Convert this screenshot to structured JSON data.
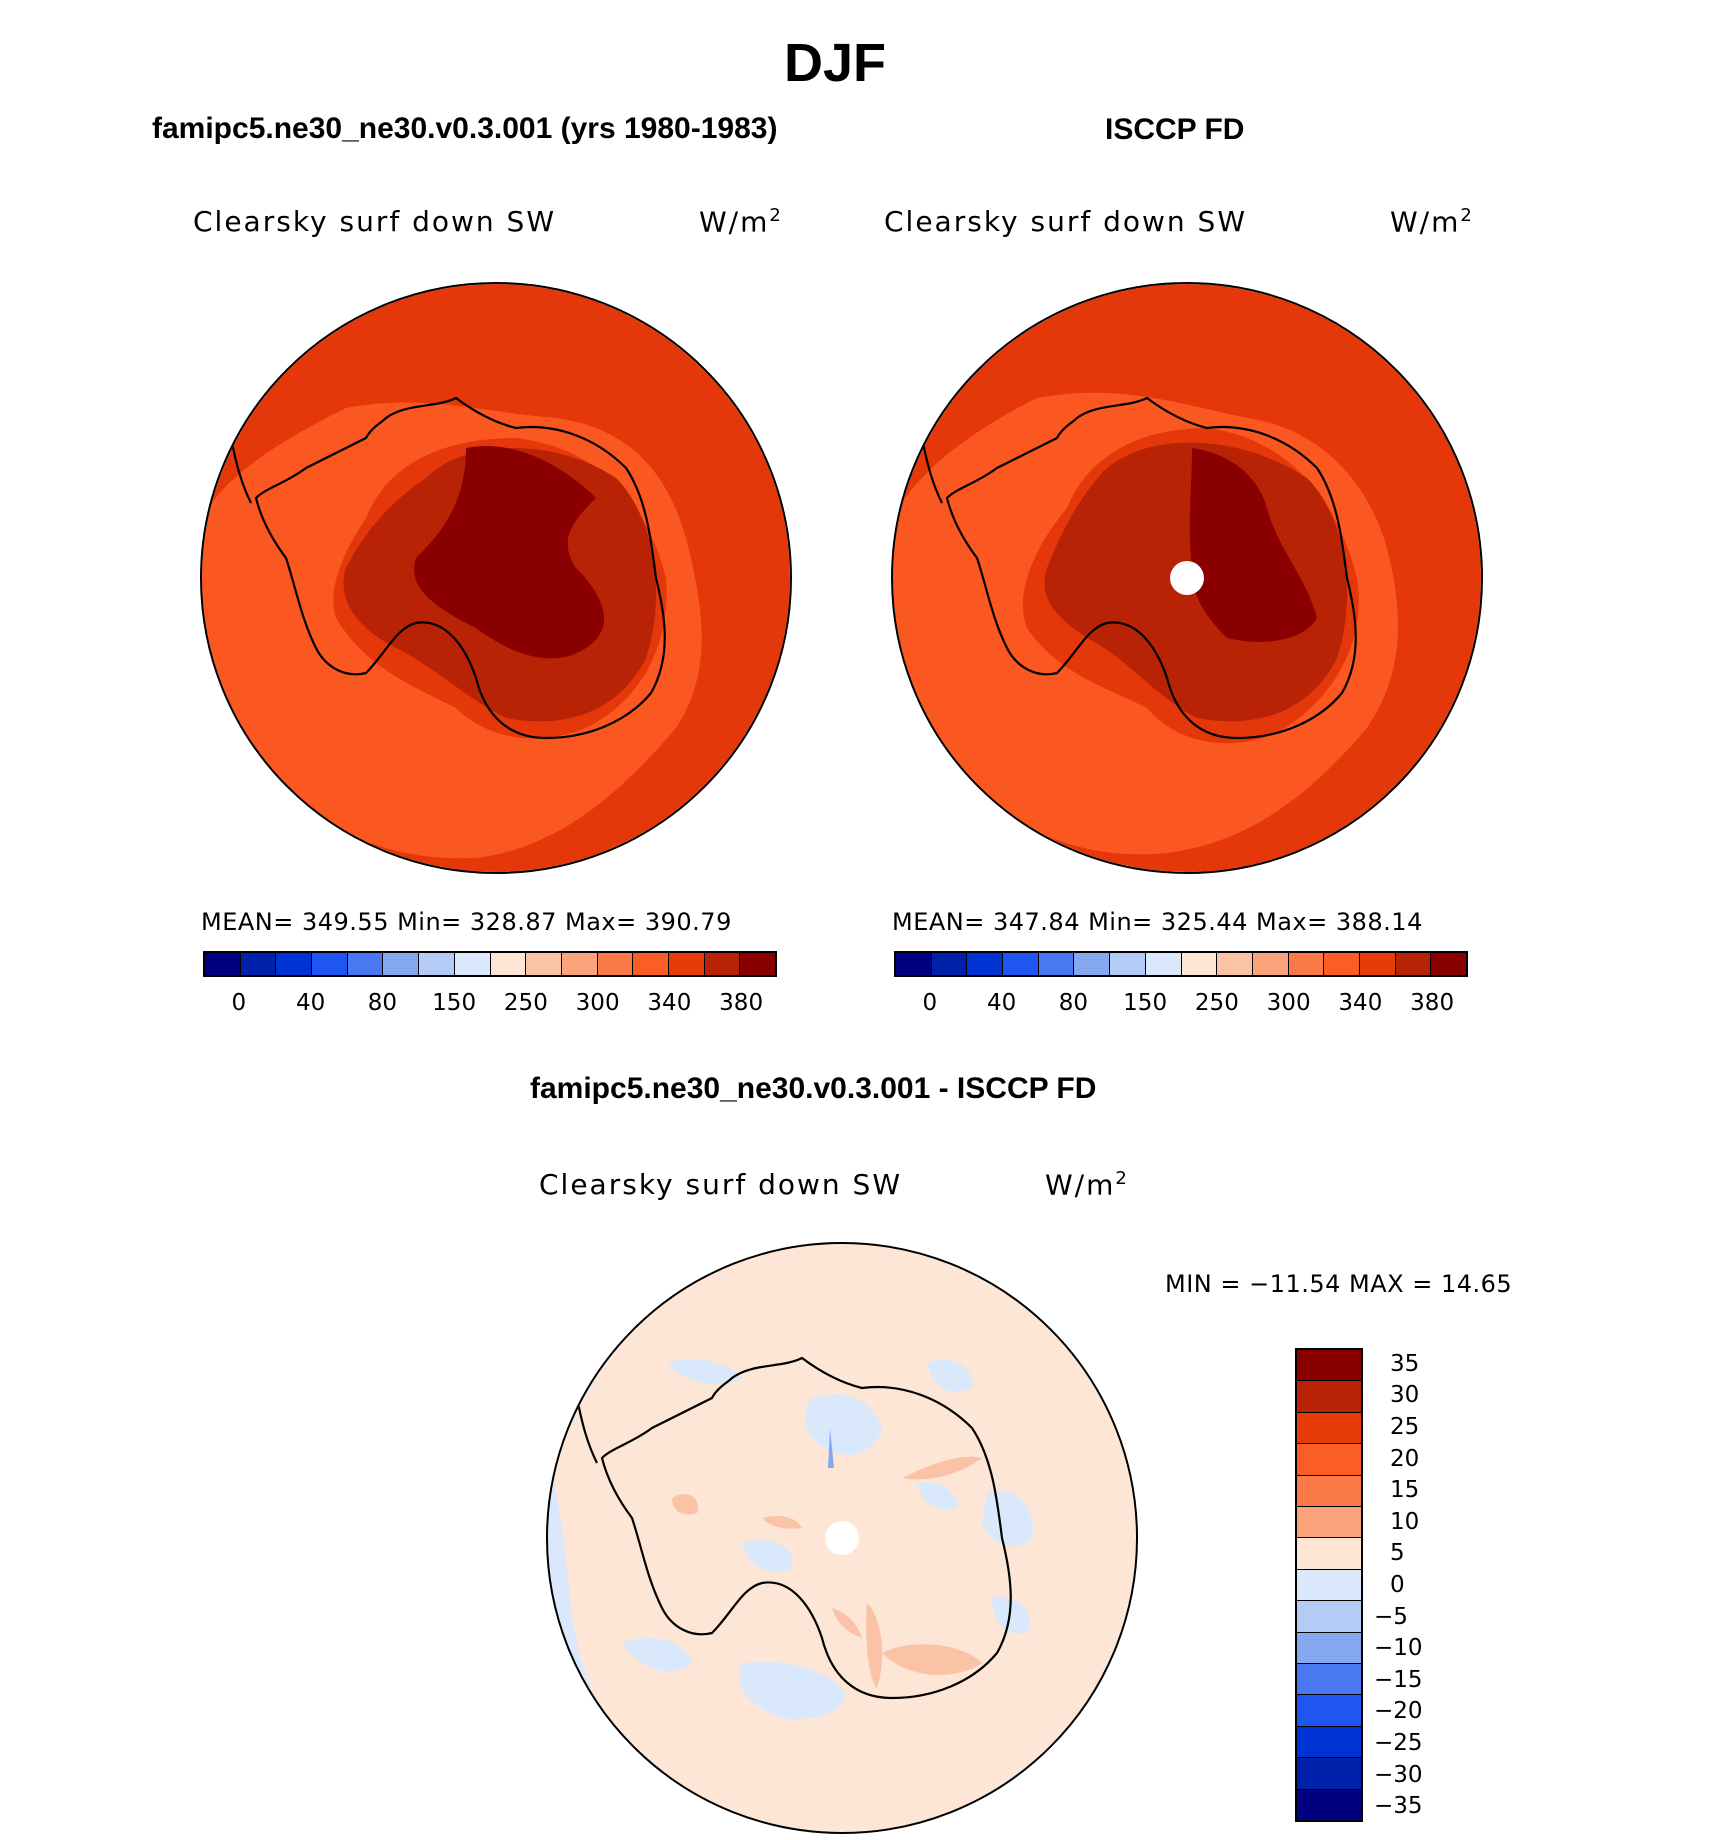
{
  "title": "DJF",
  "panels": {
    "left": {
      "title": "famipc5.ne30_ne30.v0.3.001 (yrs 1980-1983)",
      "variable": "Clearsky surf down SW",
      "units": "W/m",
      "units_exp": "2",
      "stats": "MEAN= 349.55   Min= 328.87   Max= 390.79"
    },
    "right": {
      "title": "ISCCP FD",
      "variable": "Clearsky surf down SW",
      "units": "W/m",
      "units_exp": "2",
      "stats": "MEAN= 347.84   Min= 325.44   Max= 388.14"
    },
    "diff": {
      "title": "famipc5.ne30_ne30.v0.3.001 - ISCCP FD",
      "variable": "Clearsky surf down SW",
      "units": "W/m",
      "units_exp": "2",
      "stats": "MIN = −11.54 MAX =   14.65"
    }
  },
  "colorbar_main": {
    "colors": [
      "#000080",
      "#0022aa",
      "#0033d4",
      "#1f55f0",
      "#4a78f2",
      "#86a8f0",
      "#b4cbf5",
      "#d9e8fb",
      "#fde6d6",
      "#fbc3a6",
      "#fba37a",
      "#fc7a48",
      "#fb5e25",
      "#e53c08",
      "#b82205",
      "#8a0000"
    ],
    "labels": [
      "0",
      "40",
      "80",
      "150",
      "250",
      "300",
      "340",
      "380"
    ]
  },
  "colorbar_diff": {
    "colors": [
      "#8a0000",
      "#b82205",
      "#e53c08",
      "#fb5e25",
      "#fc7a48",
      "#fba37a",
      "#fde6d6",
      "#d9e8fb",
      "#b4cbf5",
      "#86a8f0",
      "#4a78f2",
      "#1f55f0",
      "#0033d4",
      "#0022aa",
      "#000080"
    ],
    "labels": [
      "35",
      "30",
      "25",
      "20",
      "15",
      "10",
      "5",
      "0",
      "−5",
      "−10",
      "−15",
      "−20",
      "−25",
      "−30",
      "−35"
    ]
  }
}
